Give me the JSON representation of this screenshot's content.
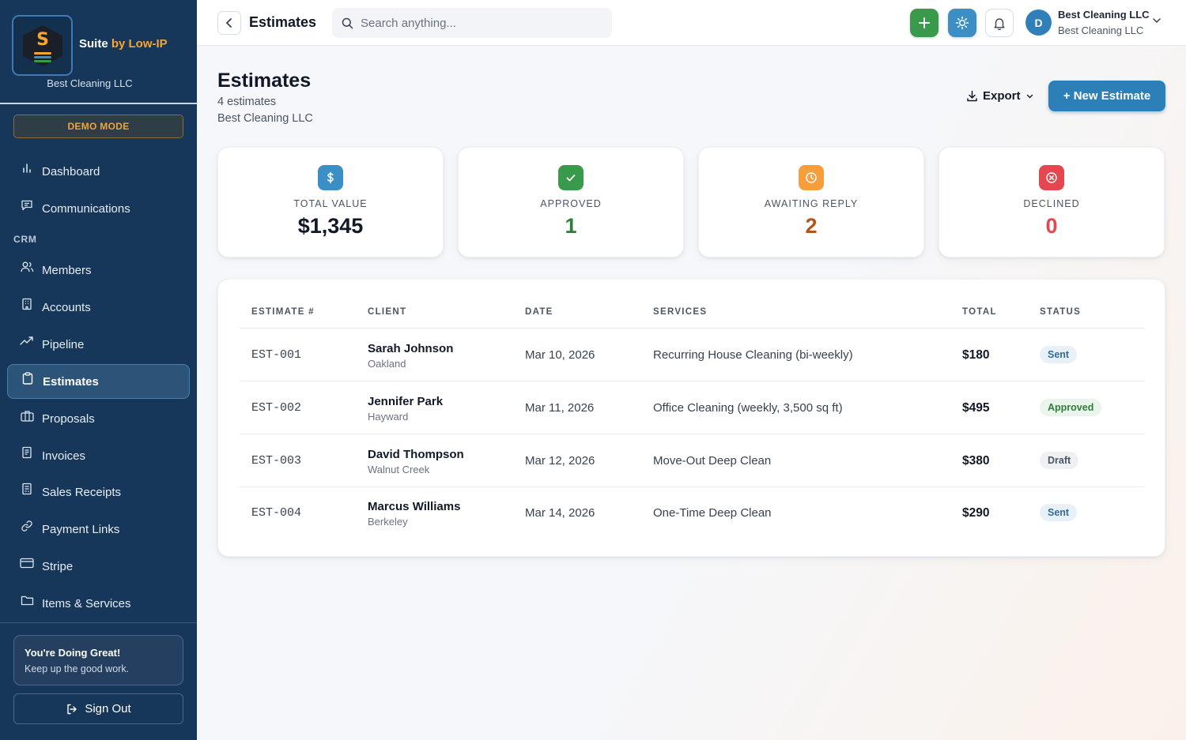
{
  "brand": {
    "name_prefix": "Suite ",
    "name_accent": "by Low-IP",
    "logo_letter": "S",
    "company": "Best Cleaning LLC"
  },
  "demo_label": "DEMO MODE",
  "nav": {
    "items_top": [
      {
        "label": "Dashboard",
        "icon": "bar-chart-icon"
      },
      {
        "label": "Communications",
        "icon": "message-icon"
      }
    ],
    "section_label": "CRM",
    "items_crm": [
      {
        "label": "Members",
        "icon": "users-icon"
      },
      {
        "label": "Accounts",
        "icon": "building-icon"
      },
      {
        "label": "Pipeline",
        "icon": "trend-icon"
      },
      {
        "label": "Estimates",
        "icon": "clipboard-icon",
        "active": true
      },
      {
        "label": "Proposals",
        "icon": "briefcase-icon"
      },
      {
        "label": "Invoices",
        "icon": "receipt-icon"
      },
      {
        "label": "Sales Receipts",
        "icon": "receipt-icon"
      },
      {
        "label": "Payment Links",
        "icon": "link-icon"
      },
      {
        "label": "Stripe",
        "icon": "card-icon"
      },
      {
        "label": "Items & Services",
        "icon": "folder-icon"
      }
    ]
  },
  "encouragement": {
    "title": "You're Doing Great!",
    "text": "Keep up the good work."
  },
  "signout_label": "Sign Out",
  "topbar": {
    "title": "Estimates",
    "search_placeholder": "Search anything...",
    "user_name": "Best Cleaning LLC",
    "user_org": "Best Cleaning LLC",
    "avatar_initial": "D"
  },
  "page": {
    "title": "Estimates",
    "count_text": "4 estimates",
    "company": "Best Cleaning LLC",
    "export_label": "Export",
    "new_label": "+ New Estimate"
  },
  "stats": [
    {
      "label": "TOTAL VALUE",
      "value": "$1,345",
      "icon": "dollar-icon",
      "color": "#3b8fc4",
      "value_color": "#111827"
    },
    {
      "label": "APPROVED",
      "value": "1",
      "icon": "check-icon",
      "color": "#3a9a4b",
      "value_color": "#2f7d3a"
    },
    {
      "label": "AWAITING REPLY",
      "value": "2",
      "icon": "clock-icon",
      "color": "#f59e3b",
      "value_color": "#b4531c"
    },
    {
      "label": "DECLINED",
      "value": "0",
      "icon": "x-circle-icon",
      "color": "#e4474f",
      "value_color": "#e4474f"
    }
  ],
  "table": {
    "headers": [
      "ESTIMATE #",
      "CLIENT",
      "DATE",
      "SERVICES",
      "TOTAL",
      "STATUS"
    ],
    "rows": [
      {
        "num": "EST-001",
        "client": "Sarah Johnson",
        "city": "Oakland",
        "date": "Mar 10, 2026",
        "services": "Recurring House Cleaning (bi-weekly)",
        "total": "$180",
        "status": "Sent"
      },
      {
        "num": "EST-002",
        "client": "Jennifer Park",
        "city": "Hayward",
        "date": "Mar 11, 2026",
        "services": "Office Cleaning (weekly, 3,500 sq ft)",
        "total": "$495",
        "status": "Approved"
      },
      {
        "num": "EST-003",
        "client": "David Thompson",
        "city": "Walnut Creek",
        "date": "Mar 12, 2026",
        "services": "Move-Out Deep Clean",
        "total": "$380",
        "status": "Draft"
      },
      {
        "num": "EST-004",
        "client": "Marcus Williams",
        "city": "Berkeley",
        "date": "Mar 14, 2026",
        "services": "One-Time Deep Clean",
        "total": "$290",
        "status": "Sent"
      }
    ]
  }
}
